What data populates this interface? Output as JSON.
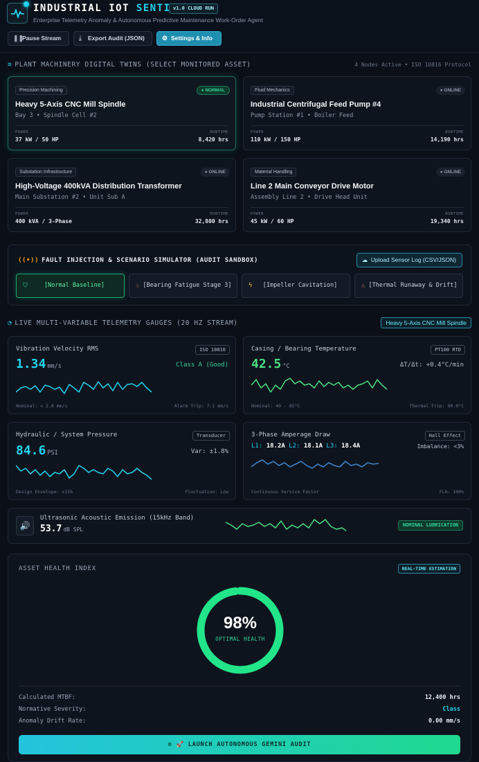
{
  "header": {
    "title_main": "INDUSTRIAL IOT ",
    "title_accent": "SENTINEL",
    "version_badge": "v1.0 CLOUD RUN",
    "subtitle": "Enterprise Telemetry Anomaly & Autonomous Predictive Maintenance Work-Order Agent",
    "buttons": {
      "pause": "Pause Stream",
      "export": "Export Audit (JSON)",
      "settings": "Settings & Info"
    }
  },
  "twins": {
    "heading": "PLANT MACHINERY DIGITAL TWINS (SELECT MONITORED ASSET)",
    "meta": "4 Nodes Active • ISO 10816 Protocol",
    "cards": [
      {
        "tag": "Precision Machining",
        "status": "● NORMAL",
        "name": "Heavy 5-Axis CNC Mill Spindle",
        "location": "Bay 3 • Spindle Cell #2",
        "power_label": "POWER",
        "power": "37 kW / 50 HP",
        "runtime_label": "RUNTIME",
        "runtime": "8,420 hrs"
      },
      {
        "tag": "Fluid Mechanics",
        "status": "● ONLINE",
        "name": "Industrial Centrifugal Feed Pump #4",
        "location": "Pump Station #1 • Boiler Feed",
        "power_label": "POWER",
        "power": "110 kW / 150 HP",
        "runtime_label": "RUNTIME",
        "runtime": "14,190 hrs"
      },
      {
        "tag": "Substation Infrastructure",
        "status": "● ONLINE",
        "name": "High-Voltage 400kVA Distribution Transformer",
        "location": "Main Substation #2 • Unit Sub A",
        "power_label": "POWER",
        "power": "400 kVA / 3-Phase",
        "runtime_label": "RUNTIME",
        "runtime": "32,800 hrs"
      },
      {
        "tag": "Material Handling",
        "status": "● ONLINE",
        "name": "Line 2 Main Conveyor Drive Motor",
        "location": "Assembly Line 2 • Drive Head Unit",
        "power_label": "POWER",
        "power": "45 kW / 60 HP",
        "runtime_label": "RUNTIME",
        "runtime": "19,340 hrs"
      }
    ]
  },
  "fault": {
    "title": "FAULT INJECTION & SCENARIO SIMULATOR (AUDIT SANDBOX)",
    "upload": "Upload Sensor Log (CSV/JSON)",
    "scenarios": [
      "[Normal Baseline]",
      "[Bearing Fatigue Stage 3]",
      "[Impeller Cavitation]",
      "[Thermal Runaway & Drift]"
    ]
  },
  "telemetry": {
    "heading": "LIVE MULTI-VARIABLE TELEMETRY GAUGES (20 HZ STREAM)",
    "asset": "Heavy 5-Axis CNC Mill Spindle",
    "vibration": {
      "title": "Vibration Velocity RMS",
      "badge": "ISO 10816",
      "value": "1.34",
      "unit": "mm/s",
      "status": "Class A (Good)",
      "foot_left": "Nominal: < 2.8 mm/s",
      "foot_right": "Alarm Trip: 7.1 mm/s"
    },
    "temperature": {
      "title": "Casing / Bearing Temperature",
      "badge": "PT100 RTD",
      "value": "42.5",
      "unit": "°C",
      "rate": "ΔT/Δt: +0.4°C/min",
      "foot_left": "Nominal: 40 - 65°C",
      "foot_right": "Thermal Trip: 90.0°C"
    },
    "pressure": {
      "title": "Hydraulic / System Pressure",
      "badge": "Transducer",
      "value": "84.6",
      "unit": "PSI",
      "variance": "Var: ±1.8%",
      "foot_left": "Design Envelope: ±15%",
      "foot_right": "Fluctuation: Low"
    },
    "amperage": {
      "title": "3-Phase Amperage Draw",
      "badge": "Hall Effect",
      "l1_label": "L1:",
      "l1": "18.2A",
      "l2_label": "L2:",
      "l2": "18.1A",
      "l3_label": "L3:",
      "l3": "18.4A",
      "imbalance": "Imbalance: <3%",
      "foot_left": "Continuous Service Factor",
      "foot_right": "FLA: 100%"
    },
    "acoustic": {
      "title": "Ultrasonic Acoustic Emission (15kHz Band)",
      "value": "53.7",
      "unit": "dB SPL",
      "badge": "NOMINAL LUBRICATION"
    }
  },
  "health": {
    "title": "ASSET HEALTH INDEX",
    "badge": "REAL-TIME ESTIMATION",
    "percent": "98%",
    "percent_value": 0.98,
    "status": "OPTIMAL HEALTH",
    "rows": [
      {
        "label": "Calculated MTBF:",
        "value": "12,400 hrs"
      },
      {
        "label": "Normative Severity:",
        "value": "Class"
      },
      {
        "label": "Anomaly Drift Rate:",
        "value": "0.00 mm/s"
      }
    ],
    "launch": "⚙ 🚀 LAUNCH AUTONOMOUS GEMINI AUDIT"
  },
  "colors": {
    "accent": "#22d3ee",
    "healthy": "#22e58a",
    "warning": "#f59e0b",
    "danger": "#ef4444"
  }
}
